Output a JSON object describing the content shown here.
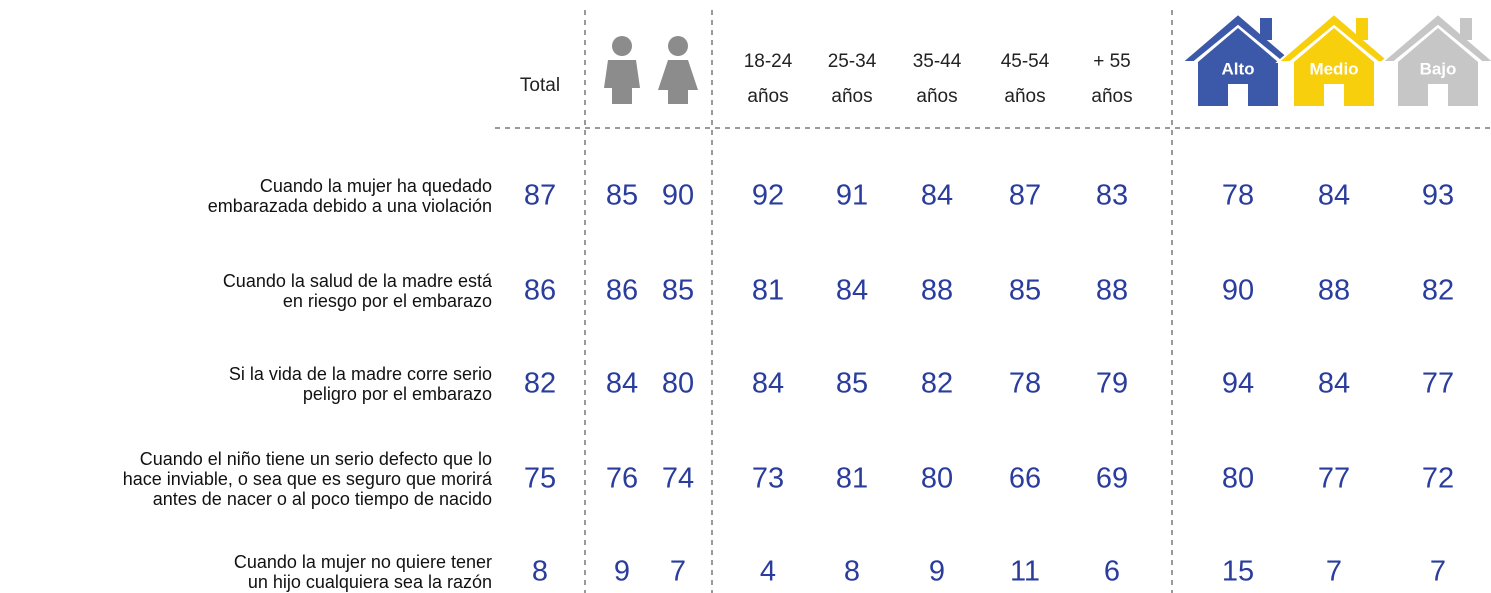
{
  "table": {
    "columns": {
      "total": "Total",
      "age": [
        [
          "18-24",
          "años"
        ],
        [
          "25-34",
          "años"
        ],
        [
          "35-44",
          "años"
        ],
        [
          "45-54",
          "años"
        ],
        [
          "+ 55",
          "años"
        ]
      ],
      "ses": [
        "Alto",
        "Medio",
        "Bajo"
      ]
    },
    "rows": [
      {
        "label": [
          "Cuando la mujer ha quedado",
          "embarazada debido a una violación"
        ],
        "values": [
          87,
          85,
          90,
          92,
          91,
          84,
          87,
          83,
          78,
          84,
          93
        ]
      },
      {
        "label": [
          "Cuando la salud de la madre está",
          "en riesgo por el embarazo"
        ],
        "values": [
          86,
          86,
          85,
          81,
          84,
          88,
          85,
          88,
          90,
          88,
          82
        ]
      },
      {
        "label": [
          "Si la vida de la madre corre serio",
          "peligro por el embarazo"
        ],
        "values": [
          82,
          84,
          80,
          84,
          85,
          82,
          78,
          79,
          94,
          84,
          77
        ]
      },
      {
        "label": [
          "Cuando el niño tiene un serio defecto que lo",
          "hace inviable, o sea que es seguro que morirá",
          "antes de nacer o al poco tiempo de nacido"
        ],
        "values": [
          75,
          76,
          74,
          73,
          81,
          80,
          66,
          69,
          80,
          77,
          72
        ]
      },
      {
        "label": [
          "Cuando la mujer no quiere tener",
          "un hijo cualquiera sea la razón"
        ],
        "values": [
          8,
          9,
          7,
          4,
          8,
          9,
          11,
          6,
          15,
          7,
          7
        ]
      }
    ]
  }
}
